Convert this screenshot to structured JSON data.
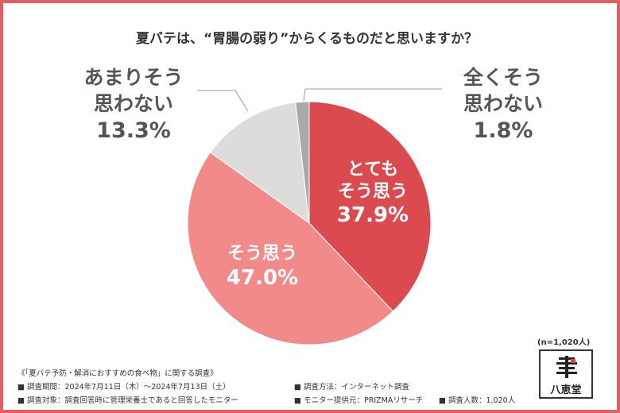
{
  "chart_data": {
    "type": "pie",
    "title": "夏バテは、“胃腸の弱り”からくるものだと思いますか？",
    "slices": [
      {
        "label_line1": "とても",
        "label_line2": "そう思う",
        "value": 37.9,
        "display": "37.9%",
        "color": "#db4a4e"
      },
      {
        "label_line1": "そう思う",
        "label_line2": "",
        "value": 47.0,
        "display": "47.0%",
        "color": "#f28a8a"
      },
      {
        "label_line1": "あまりそう",
        "label_line2": "思わない",
        "value": 13.3,
        "display": "13.3%",
        "color": "#dcdcdc"
      },
      {
        "label_line1": "全くそう",
        "label_line2": "思わない",
        "value": 1.8,
        "display": "1.8%",
        "color": "#a9a9a9"
      }
    ]
  },
  "respondents": "(n=1,020人)",
  "logo": {
    "name": "八恵堂"
  },
  "notes": {
    "survey_title": "《「夏バテ予防・解消におすすめの食べ物」に関する調査》",
    "period": "■ 調査期間：2024年7月11日（木）～2024年7月13日（土）",
    "method": "■ 調査方法：インターネット調査",
    "target": "■ 調査対象：調査回答時に管理栄養士であると回答したモニター",
    "provider": "■ モニター提供元：PRIZMAリサーチ",
    "count": "■ 調査人数：1,020人"
  },
  "colors": {
    "border": "#e06060",
    "text_dark": "#333333",
    "text_grey": "#555555"
  }
}
